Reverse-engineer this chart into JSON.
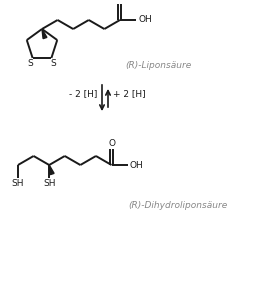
{
  "bg_color": "#ffffff",
  "line_color": "#1a1a1a",
  "text_color": "#888888",
  "label1": "(R)-Liponsäure",
  "label2": "(R)-Dihydroliponsäure",
  "arrow_left": "- 2 [H]",
  "arrow_right": "+ 2 [H]",
  "lw": 1.4,
  "font_size_label": 6.5,
  "font_size_atom": 6.5,
  "font_size_arrow": 6.5
}
